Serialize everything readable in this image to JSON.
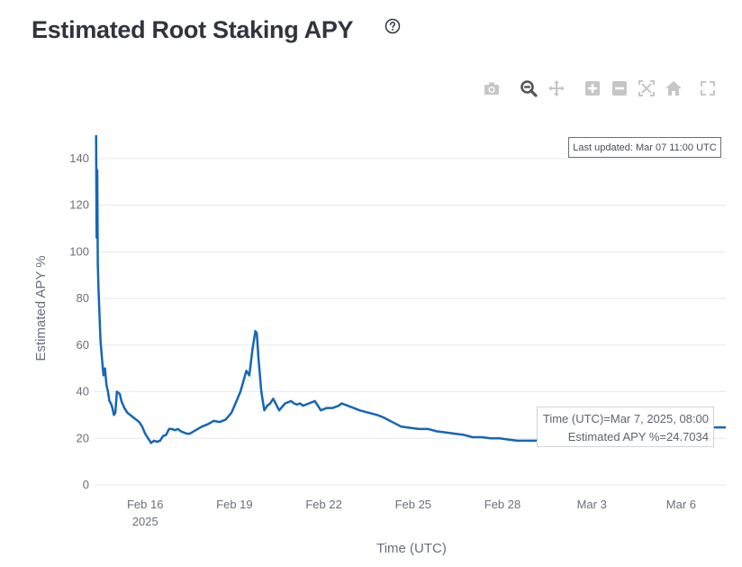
{
  "header": {
    "title": "Estimated Root Staking APY",
    "help_icon": "question-circle-icon"
  },
  "modebar": {
    "icons": [
      "camera-icon",
      "zoom-icon",
      "pan-icon",
      "zoom-in-icon",
      "zoom-out-icon",
      "autoscale-icon",
      "reset-axes-icon",
      "fullscreen-icon"
    ],
    "active_color": "#555555",
    "inactive_color": "#c6c6c6"
  },
  "annotation": {
    "last_updated": "Last updated: Mar 07 11:00 UTC"
  },
  "hover": {
    "time_line": "Time (UTC)=Mar 7, 2025, 08:00",
    "apy_line": "Estimated APY %=24.7034"
  },
  "chart_data": {
    "type": "line",
    "title": "Estimated Root Staking APY",
    "xlabel": "Time (UTC)",
    "ylabel": "Estimated APY %",
    "ylim": [
      0,
      150
    ],
    "xlim": [
      14.3,
      35.5
    ],
    "x_unit": "days since Feb 1 2025 (00:00 UTC)",
    "yticks": [
      0,
      20,
      40,
      60,
      80,
      100,
      120,
      140
    ],
    "xticks": [
      {
        "value": 16,
        "label": "Feb 16",
        "sublabel": "2025"
      },
      {
        "value": 19,
        "label": "Feb 19",
        "sublabel": ""
      },
      {
        "value": 22,
        "label": "Feb 22",
        "sublabel": ""
      },
      {
        "value": 25,
        "label": "Feb 25",
        "sublabel": ""
      },
      {
        "value": 28,
        "label": "Feb 28",
        "sublabel": ""
      },
      {
        "value": 31,
        "label": "Mar 3",
        "sublabel": ""
      },
      {
        "value": 34,
        "label": "Mar 6",
        "sublabel": ""
      }
    ],
    "grid": true,
    "line_color": "#1666b8",
    "series": [
      {
        "name": "",
        "x": [
          14.35,
          14.37,
          14.39,
          14.41,
          14.43,
          14.45,
          14.5,
          14.55,
          14.6,
          14.65,
          14.7,
          14.75,
          14.8,
          14.85,
          14.9,
          14.95,
          15.0,
          15.05,
          15.1,
          15.15,
          15.2,
          15.3,
          15.4,
          15.5,
          15.6,
          15.7,
          15.8,
          15.9,
          16.0,
          16.1,
          16.2,
          16.3,
          16.4,
          16.5,
          16.6,
          16.7,
          16.8,
          16.9,
          17.0,
          17.1,
          17.2,
          17.3,
          17.4,
          17.5,
          17.7,
          17.9,
          18.1,
          18.3,
          18.5,
          18.7,
          18.9,
          19.0,
          19.2,
          19.4,
          19.5,
          19.6,
          19.7,
          19.75,
          19.8,
          19.9,
          20.0,
          20.1,
          20.2,
          20.3,
          20.5,
          20.7,
          20.9,
          21.0,
          21.1,
          21.2,
          21.3,
          21.5,
          21.7,
          21.9,
          22.1,
          22.3,
          22.5,
          22.6,
          22.8,
          23.0,
          23.2,
          23.5,
          23.8,
          24.0,
          24.3,
          24.6,
          24.9,
          25.2,
          25.5,
          25.8,
          26.1,
          26.4,
          26.7,
          27.0,
          27.3,
          27.6,
          27.9,
          28.2,
          28.5,
          28.8,
          29.1,
          29.5,
          30.0,
          30.5,
          31.0,
          31.5,
          32.0,
          32.5,
          33.0,
          33.5,
          34.0,
          34.5,
          35.0,
          35.3,
          35.5
        ],
        "y": [
          150,
          106,
          135,
          95,
          85,
          78,
          62,
          54,
          47,
          50,
          43,
          40,
          36,
          35,
          33,
          30,
          31,
          40,
          39.5,
          39,
          36,
          33,
          31,
          30,
          29,
          28,
          27,
          25,
          22,
          20,
          18,
          19,
          18.5,
          19,
          21,
          21.5,
          24,
          24,
          23.5,
          24,
          23,
          22.5,
          22,
          22,
          23.5,
          25,
          26,
          27.5,
          27,
          28,
          31,
          34,
          40,
          49,
          47,
          58,
          66,
          65,
          55,
          40,
          32,
          34,
          35,
          37,
          32,
          35,
          36,
          35,
          34.5,
          35,
          34,
          35,
          36,
          32,
          33,
          33,
          34,
          35,
          34,
          33,
          32,
          31,
          30,
          29,
          27,
          25,
          24.5,
          24,
          24,
          23,
          22.5,
          22,
          21.5,
          20.5,
          20.5,
          20,
          20,
          19.5,
          19,
          19,
          19,
          19.5,
          20,
          20.5,
          21,
          21.5,
          21.8,
          22,
          22.5,
          23,
          23.5,
          24,
          24.7,
          24.7,
          24.7
        ]
      }
    ]
  }
}
